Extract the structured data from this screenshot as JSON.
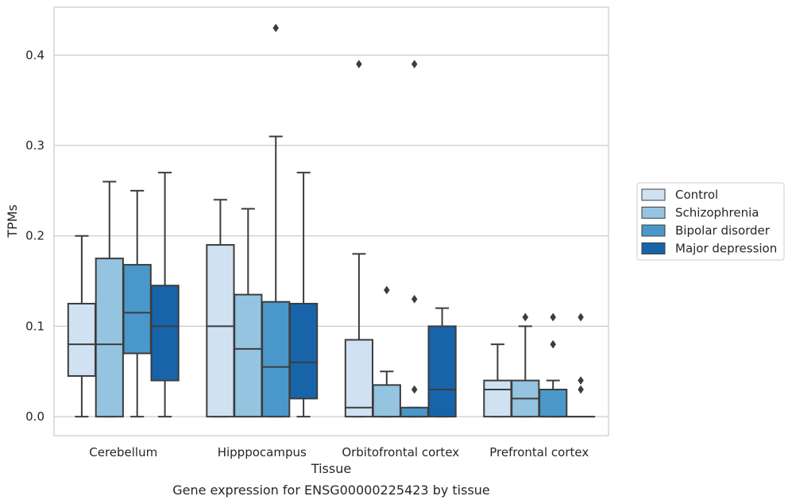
{
  "caption": "Gene expression for ENSG00000225423 by tissue",
  "chart_data": {
    "type": "box",
    "xlabel": "Tissue",
    "ylabel": "TPMs",
    "ylim": [
      -0.021,
      0.453
    ],
    "yticks": [
      0.0,
      0.1,
      0.2,
      0.3,
      0.4
    ],
    "ytick_labels": [
      "0.0",
      "0.1",
      "0.2",
      "0.3",
      "0.4"
    ],
    "grid": "horizontal",
    "legend_position": "right",
    "categories": [
      "Cerebellum",
      "Hipppocampus",
      "Orbitofrontal cortex",
      "Prefrontal cortex"
    ],
    "series": [
      {
        "name": "Control",
        "color": "#d0e1f2",
        "boxes": [
          {
            "whislo": 0.0,
            "q1": 0.045,
            "med": 0.08,
            "q3": 0.125,
            "whishi": 0.2,
            "fliers": []
          },
          {
            "whislo": 0.0,
            "q1": 0.0,
            "med": 0.1,
            "q3": 0.19,
            "whishi": 0.24,
            "fliers": []
          },
          {
            "whislo": 0.0,
            "q1": 0.0,
            "med": 0.01,
            "q3": 0.085,
            "whishi": 0.18,
            "fliers": [
              0.39
            ]
          },
          {
            "whislo": 0.0,
            "q1": 0.0,
            "med": 0.03,
            "q3": 0.04,
            "whishi": 0.08,
            "fliers": []
          }
        ]
      },
      {
        "name": "Schizophrenia",
        "color": "#94c4df",
        "boxes": [
          {
            "whislo": 0.0,
            "q1": 0.0,
            "med": 0.08,
            "q3": 0.175,
            "whishi": 0.26,
            "fliers": []
          },
          {
            "whislo": 0.0,
            "q1": 0.0,
            "med": 0.075,
            "q3": 0.135,
            "whishi": 0.23,
            "fliers": []
          },
          {
            "whislo": 0.0,
            "q1": 0.0,
            "med": 0.0,
            "q3": 0.035,
            "whishi": 0.05,
            "fliers": [
              0.14
            ]
          },
          {
            "whislo": 0.0,
            "q1": 0.0,
            "med": 0.02,
            "q3": 0.04,
            "whishi": 0.1,
            "fliers": [
              0.11
            ]
          }
        ]
      },
      {
        "name": "Bipolar disorder",
        "color": "#4a98c9",
        "boxes": [
          {
            "whislo": 0.0,
            "q1": 0.07,
            "med": 0.115,
            "q3": 0.168,
            "whishi": 0.25,
            "fliers": []
          },
          {
            "whislo": 0.0,
            "q1": 0.0,
            "med": 0.055,
            "q3": 0.127,
            "whishi": 0.31,
            "fliers": [
              0.43
            ]
          },
          {
            "whislo": 0.0,
            "q1": 0.0,
            "med": 0.0,
            "q3": 0.01,
            "whishi": 0.01,
            "fliers": [
              0.03,
              0.13,
              0.39
            ]
          },
          {
            "whislo": 0.0,
            "q1": 0.0,
            "med": 0.0,
            "q3": 0.03,
            "whishi": 0.04,
            "fliers": [
              0.08,
              0.11
            ]
          }
        ]
      },
      {
        "name": "Major depression",
        "color": "#1764ab",
        "boxes": [
          {
            "whislo": 0.0,
            "q1": 0.04,
            "med": 0.1,
            "q3": 0.145,
            "whishi": 0.27,
            "fliers": []
          },
          {
            "whislo": 0.0,
            "q1": 0.02,
            "med": 0.06,
            "q3": 0.125,
            "whishi": 0.27,
            "fliers": []
          },
          {
            "whislo": 0.0,
            "q1": 0.0,
            "med": 0.03,
            "q3": 0.1,
            "whishi": 0.12,
            "fliers": []
          },
          {
            "whislo": 0.0,
            "q1": 0.0,
            "med": 0.0,
            "q3": 0.0,
            "whishi": 0.0,
            "fliers": [
              0.03,
              0.04,
              0.11
            ]
          }
        ]
      }
    ]
  }
}
